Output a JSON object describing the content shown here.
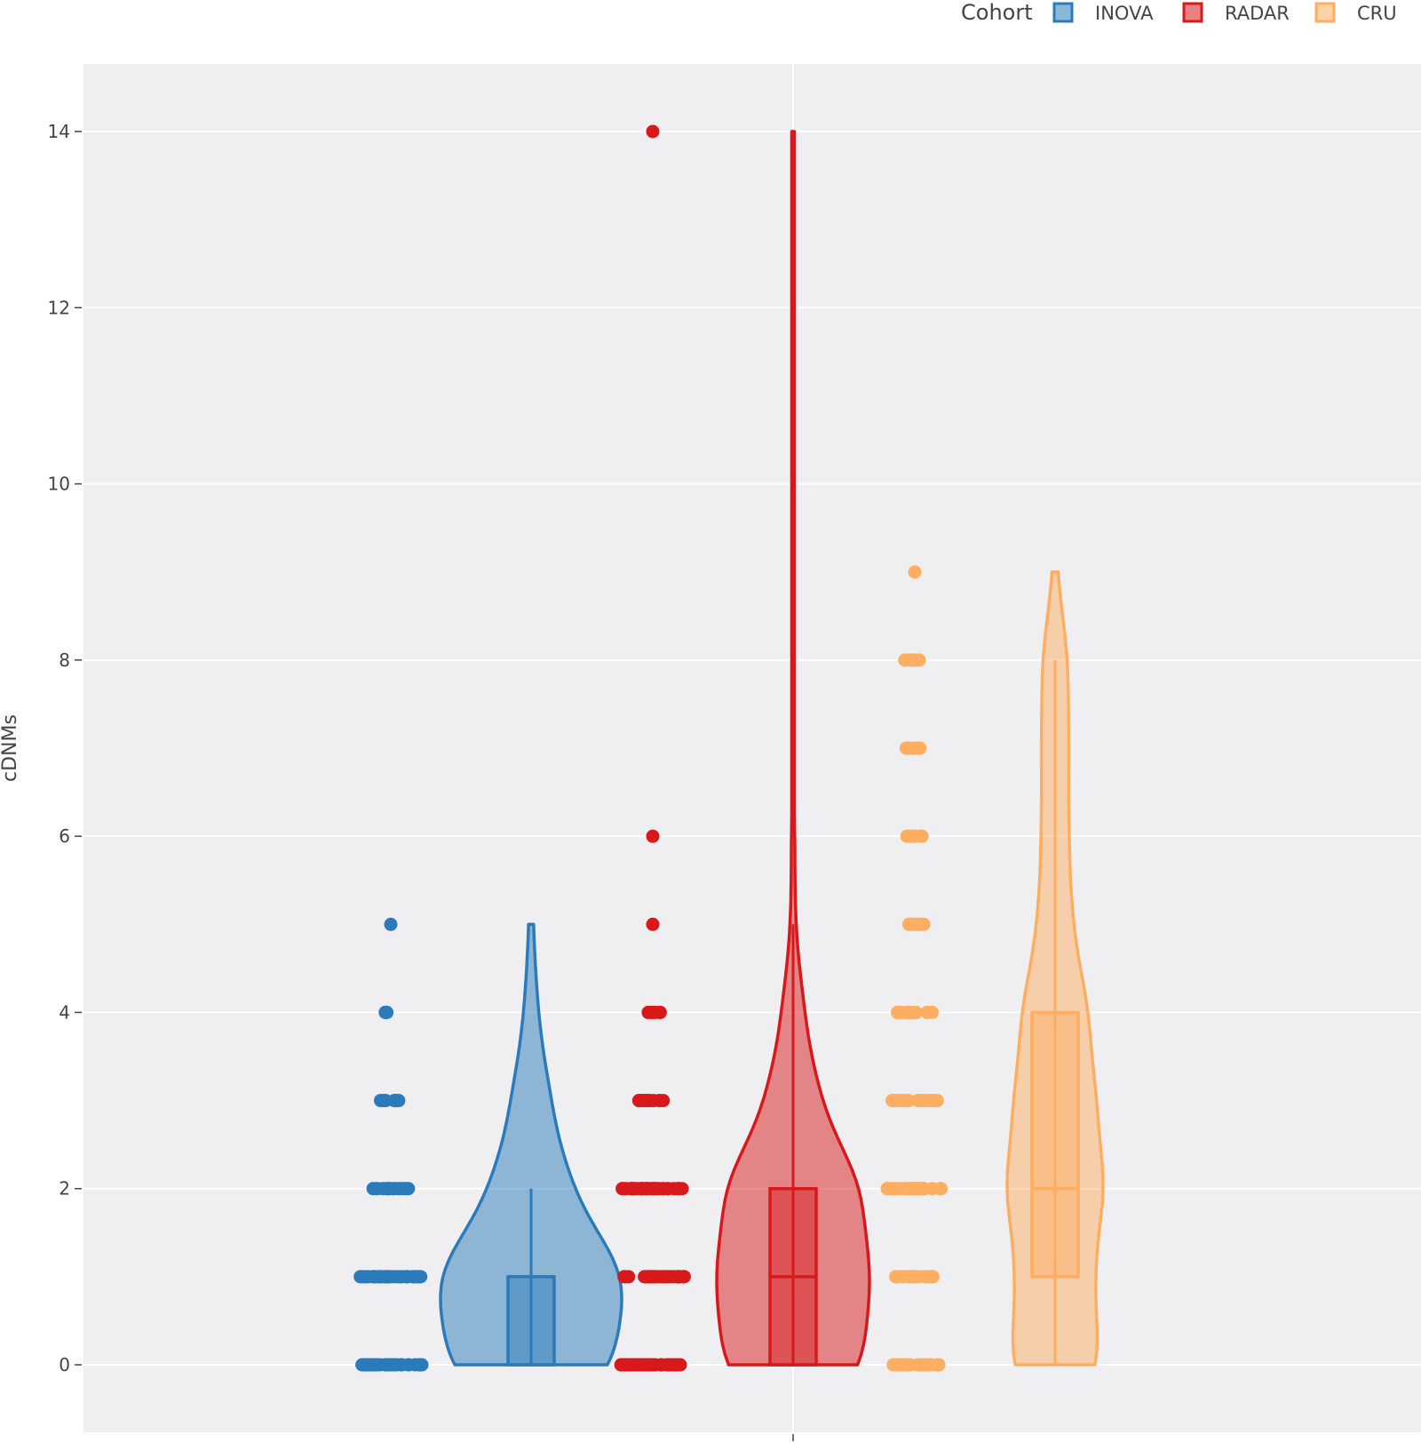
{
  "chart_data": {
    "type": "violin",
    "ylabel": "cDNMs",
    "xlabel": "",
    "ylim": [
      -0.8,
      14.8
    ],
    "yticks": [
      0,
      2,
      4,
      6,
      8,
      10,
      12,
      14
    ],
    "grid": true,
    "legend": {
      "title": "Cohort",
      "placement": "top-right, horizontal",
      "entries": [
        "INOVA",
        "RADAR",
        "CRU"
      ]
    },
    "series": [
      {
        "name": "INOVA",
        "color": "#2b7bba",
        "points": [
          {
            "y": 0,
            "count": 40
          },
          {
            "y": 1,
            "count": 45
          },
          {
            "y": 2,
            "count": 18
          },
          {
            "y": 3,
            "count": 9
          },
          {
            "y": 4,
            "count": 3
          },
          {
            "y": 5,
            "count": 1
          }
        ],
        "box": {
          "min": 0,
          "q1": 0,
          "median": 1,
          "q3": 1,
          "max": 2
        },
        "range": [
          0,
          5
        ]
      },
      {
        "name": "RADAR",
        "color": "#d7191c",
        "points": [
          {
            "y": 0,
            "count": 40
          },
          {
            "y": 1,
            "count": 42
          },
          {
            "y": 2,
            "count": 38
          },
          {
            "y": 3,
            "count": 14
          },
          {
            "y": 4,
            "count": 6
          },
          {
            "y": 5,
            "count": 1
          },
          {
            "y": 6,
            "count": 1
          },
          {
            "y": 14,
            "count": 1
          }
        ],
        "box": {
          "min": 0,
          "q1": 0,
          "median": 1,
          "q3": 2,
          "max": 5
        },
        "range": [
          0,
          14
        ]
      },
      {
        "name": "CRU",
        "color": "#fdae61",
        "points": [
          {
            "y": 0,
            "count": 28
          },
          {
            "y": 1,
            "count": 22
          },
          {
            "y": 2,
            "count": 30
          },
          {
            "y": 3,
            "count": 24
          },
          {
            "y": 4,
            "count": 20
          },
          {
            "y": 5,
            "count": 10
          },
          {
            "y": 6,
            "count": 8
          },
          {
            "y": 7,
            "count": 8
          },
          {
            "y": 8,
            "count": 8
          },
          {
            "y": 9,
            "count": 1
          }
        ],
        "box": {
          "min": 0,
          "q1": 1,
          "median": 2,
          "q3": 4,
          "max": 8
        },
        "range": [
          0,
          9
        ]
      }
    ]
  }
}
